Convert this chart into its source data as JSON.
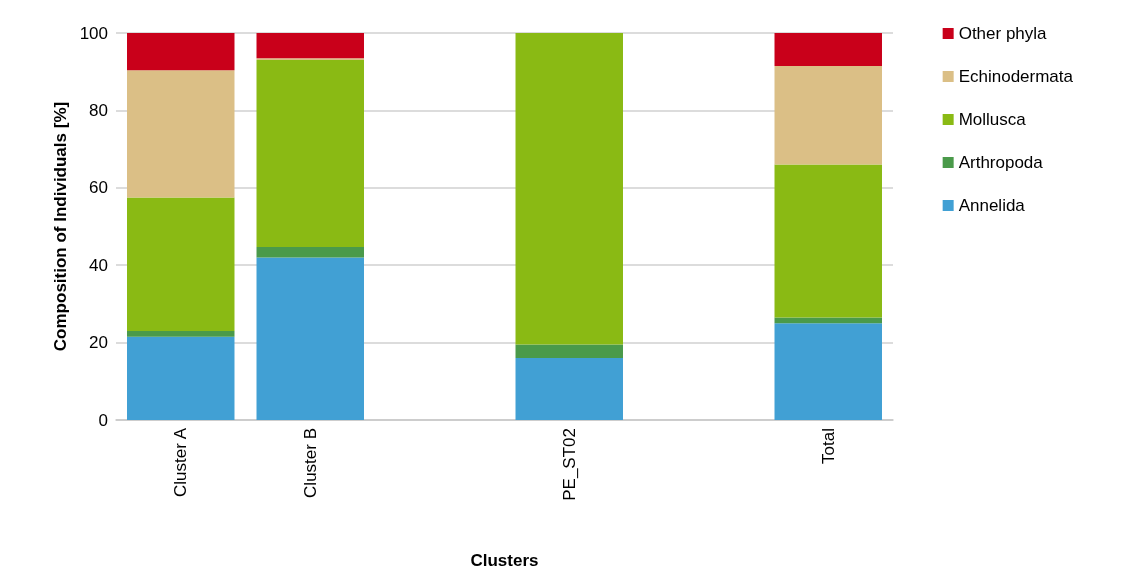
{
  "chart_data": {
    "type": "bar",
    "stacked": true,
    "xlabel": "Clusters",
    "ylabel": "Composition of Individuals [%]",
    "categories": [
      "Cluster A",
      "Cluster B",
      null,
      "PE_ST02",
      null,
      "Total"
    ],
    "series": [
      {
        "name": "Annelida",
        "color": "#41a0d4",
        "values": [
          21.5,
          42,
          null,
          16,
          null,
          25
        ]
      },
      {
        "name": "Arthropoda",
        "color": "#4a9a4a",
        "values": [
          1.5,
          2.7,
          null,
          3.5,
          null,
          1.5
        ]
      },
      {
        "name": "Mollusca",
        "color": "#8aba14",
        "values": [
          34.5,
          48.3,
          null,
          80.5,
          null,
          39.5
        ]
      },
      {
        "name": "Echinodermata",
        "color": "#dbbf86",
        "values": [
          32.9,
          0.5,
          null,
          0,
          null,
          25.5
        ]
      },
      {
        "name": "Other phyla",
        "color": "#c9001a",
        "values": [
          9.6,
          6.5,
          null,
          0,
          null,
          8.5
        ]
      }
    ],
    "ylim": [
      0,
      100
    ],
    "yticks": [
      0,
      20,
      40,
      60,
      80,
      100
    ],
    "grid": "y",
    "legend": "right"
  }
}
